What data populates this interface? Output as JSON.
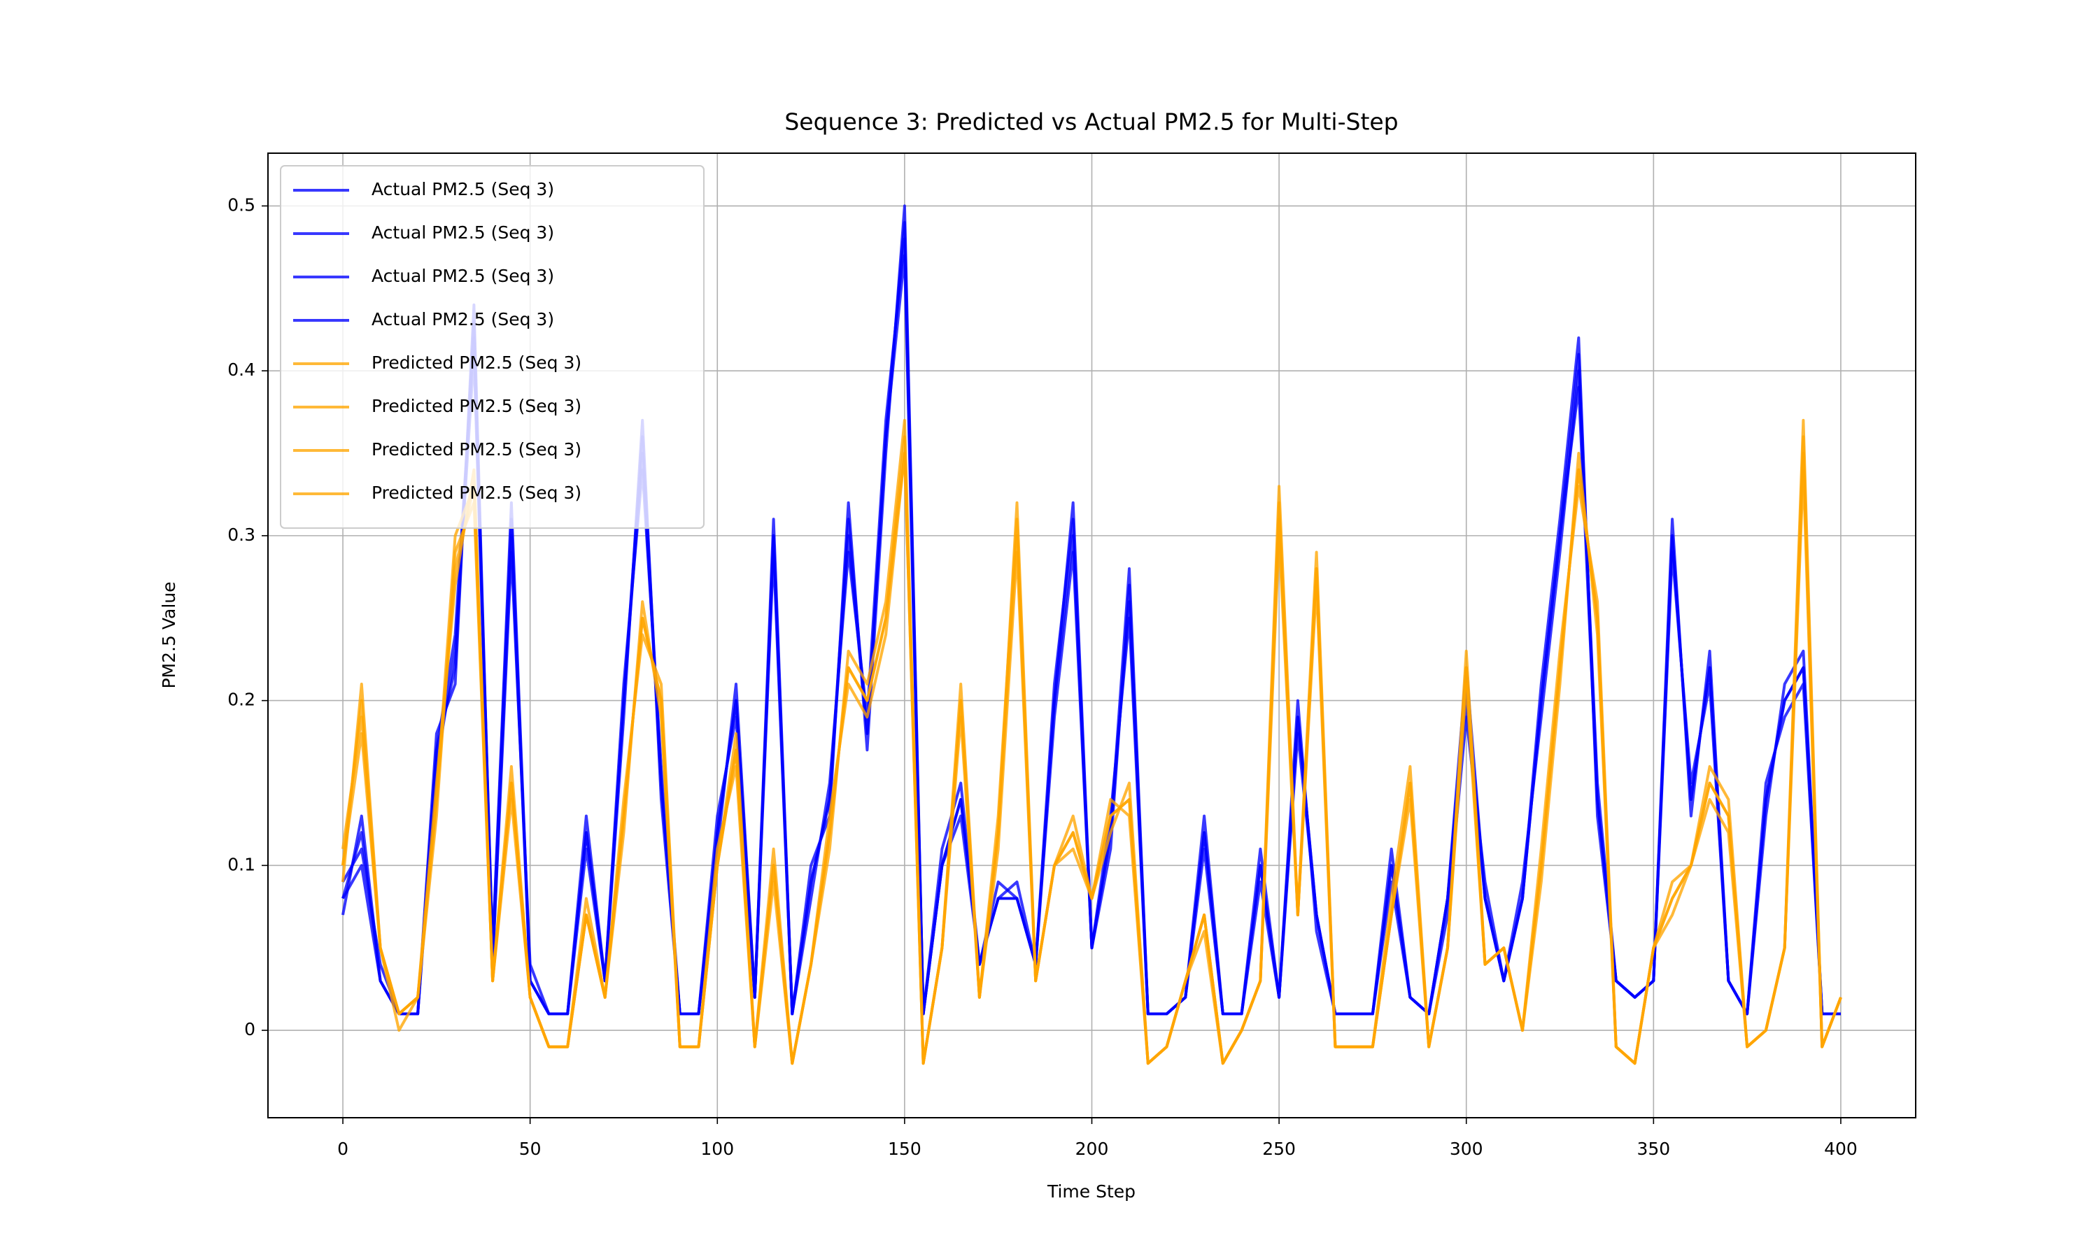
{
  "chart_data": {
    "type": "line",
    "title": "Sequence 3: Predicted vs Actual PM2.5 for Multi-Step",
    "x_label": "Time Step",
    "y_label": "PM2.5 Value",
    "x": [
      0,
      5,
      10,
      15,
      20,
      25,
      30,
      35,
      40,
      45,
      50,
      55,
      60,
      65,
      70,
      75,
      80,
      85,
      90,
      95,
      100,
      105,
      110,
      115,
      120,
      125,
      130,
      135,
      140,
      145,
      150,
      155,
      160,
      165,
      170,
      175,
      180,
      185,
      190,
      195,
      200,
      205,
      210,
      215,
      220,
      225,
      230,
      235,
      240,
      245,
      250,
      255,
      260,
      265,
      270,
      275,
      280,
      285,
      290,
      295,
      300,
      305,
      310,
      315,
      320,
      325,
      330,
      335,
      340,
      345,
      350,
      355,
      360,
      365,
      370,
      375,
      380,
      385,
      390,
      395,
      400
    ],
    "series": [
      {
        "name": "Actual PM2.5 (Seq 3)",
        "color": "#0000ff",
        "values": [
          0.08,
          0.12,
          0.03,
          0.01,
          0.01,
          0.17,
          0.22,
          0.43,
          0.04,
          0.3,
          0.03,
          0.01,
          0.01,
          0.12,
          0.03,
          0.2,
          0.35,
          0.15,
          0.01,
          0.01,
          0.12,
          0.2,
          0.02,
          0.3,
          0.01,
          0.09,
          0.14,
          0.3,
          0.18,
          0.36,
          0.49,
          0.01,
          0.1,
          0.14,
          0.04,
          0.08,
          0.08,
          0.04,
          0.2,
          0.3,
          0.05,
          0.12,
          0.26,
          0.01,
          0.01,
          0.02,
          0.12,
          0.01,
          0.01,
          0.1,
          0.02,
          0.19,
          0.07,
          0.01,
          0.01,
          0.01,
          0.1,
          0.02,
          0.01,
          0.08,
          0.2,
          0.08,
          0.03,
          0.08,
          0.2,
          0.3,
          0.41,
          0.14,
          0.03,
          0.02,
          0.03,
          0.3,
          0.14,
          0.22,
          0.03,
          0.01,
          0.14,
          0.2,
          0.22,
          0.01,
          0.01
        ]
      },
      {
        "name": "Actual PM2.5 (Seq 3)",
        "color": "#0000ff",
        "values": [
          0.09,
          0.11,
          0.04,
          0.01,
          0.01,
          0.16,
          0.23,
          0.41,
          0.05,
          0.32,
          0.03,
          0.01,
          0.01,
          0.11,
          0.03,
          0.19,
          0.37,
          0.14,
          0.01,
          0.01,
          0.11,
          0.21,
          0.02,
          0.29,
          0.01,
          0.1,
          0.13,
          0.32,
          0.17,
          0.35,
          0.5,
          0.01,
          0.1,
          0.13,
          0.04,
          0.09,
          0.08,
          0.04,
          0.21,
          0.31,
          0.05,
          0.11,
          0.27,
          0.01,
          0.01,
          0.02,
          0.11,
          0.01,
          0.01,
          0.11,
          0.02,
          0.18,
          0.07,
          0.01,
          0.01,
          0.01,
          0.09,
          0.02,
          0.01,
          0.08,
          0.21,
          0.08,
          0.03,
          0.08,
          0.21,
          0.31,
          0.42,
          0.13,
          0.03,
          0.02,
          0.03,
          0.31,
          0.13,
          0.23,
          0.03,
          0.01,
          0.13,
          0.21,
          0.23,
          0.01,
          0.01
        ]
      },
      {
        "name": "Actual PM2.5 (Seq 3)",
        "color": "#0000ff",
        "values": [
          0.07,
          0.13,
          0.03,
          0.01,
          0.01,
          0.18,
          0.21,
          0.44,
          0.04,
          0.29,
          0.04,
          0.01,
          0.01,
          0.13,
          0.03,
          0.21,
          0.34,
          0.16,
          0.01,
          0.01,
          0.13,
          0.19,
          0.02,
          0.31,
          0.01,
          0.08,
          0.15,
          0.29,
          0.19,
          0.37,
          0.48,
          0.01,
          0.11,
          0.15,
          0.04,
          0.08,
          0.09,
          0.04,
          0.19,
          0.29,
          0.05,
          0.13,
          0.25,
          0.01,
          0.01,
          0.02,
          0.13,
          0.01,
          0.01,
          0.1,
          0.02,
          0.2,
          0.06,
          0.01,
          0.01,
          0.01,
          0.11,
          0.02,
          0.01,
          0.07,
          0.19,
          0.09,
          0.03,
          0.09,
          0.19,
          0.29,
          0.4,
          0.15,
          0.03,
          0.02,
          0.03,
          0.29,
          0.15,
          0.21,
          0.03,
          0.01,
          0.15,
          0.19,
          0.21,
          0.01,
          0.01
        ]
      },
      {
        "name": "Actual PM2.5 (Seq 3)",
        "color": "#0000ff",
        "values": [
          0.08,
          0.1,
          0.03,
          0.01,
          0.01,
          0.17,
          0.24,
          0.42,
          0.05,
          0.31,
          0.03,
          0.01,
          0.01,
          0.12,
          0.03,
          0.2,
          0.36,
          0.15,
          0.01,
          0.01,
          0.12,
          0.2,
          0.02,
          0.3,
          0.01,
          0.09,
          0.14,
          0.31,
          0.18,
          0.36,
          0.47,
          0.01,
          0.1,
          0.14,
          0.04,
          0.08,
          0.08,
          0.04,
          0.2,
          0.32,
          0.05,
          0.12,
          0.28,
          0.01,
          0.01,
          0.02,
          0.12,
          0.01,
          0.01,
          0.09,
          0.02,
          0.19,
          0.07,
          0.01,
          0.01,
          0.01,
          0.1,
          0.02,
          0.01,
          0.08,
          0.22,
          0.08,
          0.03,
          0.08,
          0.2,
          0.3,
          0.39,
          0.14,
          0.03,
          0.02,
          0.03,
          0.3,
          0.14,
          0.22,
          0.03,
          0.01,
          0.14,
          0.2,
          0.22,
          0.01,
          0.01
        ]
      },
      {
        "name": "Predicted PM2.5 (Seq 3)",
        "color": "#ffa500",
        "values": [
          0.1,
          0.2,
          0.05,
          0.01,
          0.02,
          0.14,
          0.28,
          0.33,
          0.03,
          0.15,
          0.02,
          -0.01,
          -0.01,
          0.07,
          0.02,
          0.13,
          0.25,
          0.2,
          -0.01,
          -0.01,
          0.1,
          0.17,
          -0.01,
          0.1,
          -0.02,
          0.04,
          0.12,
          0.22,
          0.2,
          0.25,
          0.36,
          -0.02,
          0.05,
          0.2,
          0.02,
          0.12,
          0.3,
          0.03,
          0.1,
          0.12,
          0.08,
          0.13,
          0.14,
          -0.02,
          -0.01,
          0.03,
          0.07,
          -0.02,
          0.0,
          0.03,
          0.32,
          0.07,
          0.28,
          -0.01,
          -0.01,
          -0.01,
          0.07,
          0.15,
          -0.01,
          0.05,
          0.22,
          0.04,
          0.05,
          0.0,
          0.1,
          0.22,
          0.34,
          0.25,
          -0.01,
          -0.02,
          0.05,
          0.08,
          0.1,
          0.15,
          0.13,
          -0.01,
          0.0,
          0.05,
          0.35,
          -0.01,
          0.02
        ]
      },
      {
        "name": "Predicted PM2.5 (Seq 3)",
        "color": "#ffa500",
        "values": [
          0.11,
          0.19,
          0.05,
          0.01,
          0.02,
          0.15,
          0.27,
          0.34,
          0.03,
          0.16,
          0.02,
          -0.01,
          -0.01,
          0.08,
          0.02,
          0.12,
          0.26,
          0.19,
          -0.01,
          -0.01,
          0.11,
          0.16,
          -0.01,
          0.11,
          -0.02,
          0.04,
          0.11,
          0.23,
          0.21,
          0.26,
          0.37,
          -0.02,
          0.05,
          0.19,
          0.02,
          0.13,
          0.31,
          0.03,
          0.1,
          0.13,
          0.08,
          0.14,
          0.13,
          -0.02,
          -0.01,
          0.03,
          0.06,
          -0.02,
          0.0,
          0.03,
          0.33,
          0.07,
          0.27,
          -0.01,
          -0.01,
          -0.01,
          0.08,
          0.16,
          -0.01,
          0.05,
          0.21,
          0.04,
          0.05,
          0.0,
          0.11,
          0.23,
          0.33,
          0.26,
          -0.01,
          -0.02,
          0.05,
          0.09,
          0.1,
          0.14,
          0.12,
          -0.01,
          0.0,
          0.05,
          0.36,
          -0.01,
          0.02
        ]
      },
      {
        "name": "Predicted PM2.5 (Seq 3)",
        "color": "#ffa500",
        "values": [
          0.09,
          0.21,
          0.05,
          0.0,
          0.02,
          0.13,
          0.29,
          0.32,
          0.03,
          0.14,
          0.02,
          -0.01,
          -0.01,
          0.07,
          0.02,
          0.14,
          0.24,
          0.21,
          -0.01,
          -0.01,
          0.1,
          0.18,
          -0.01,
          0.09,
          -0.02,
          0.04,
          0.13,
          0.21,
          0.19,
          0.24,
          0.35,
          -0.02,
          0.05,
          0.21,
          0.02,
          0.11,
          0.29,
          0.03,
          0.1,
          0.11,
          0.08,
          0.12,
          0.15,
          -0.02,
          -0.01,
          0.03,
          0.07,
          -0.02,
          0.0,
          0.03,
          0.31,
          0.07,
          0.29,
          -0.01,
          -0.01,
          -0.01,
          0.07,
          0.14,
          -0.01,
          0.05,
          0.23,
          0.04,
          0.05,
          0.0,
          0.09,
          0.21,
          0.35,
          0.24,
          -0.01,
          -0.02,
          0.05,
          0.07,
          0.1,
          0.16,
          0.14,
          -0.01,
          0.0,
          0.05,
          0.34,
          -0.01,
          0.02
        ]
      },
      {
        "name": "Predicted PM2.5 (Seq 3)",
        "color": "#ffa500",
        "values": [
          0.1,
          0.18,
          0.05,
          0.01,
          0.02,
          0.14,
          0.3,
          0.33,
          0.03,
          0.15,
          0.02,
          -0.01,
          -0.01,
          0.07,
          0.02,
          0.13,
          0.25,
          0.2,
          -0.01,
          -0.01,
          0.1,
          0.17,
          -0.01,
          0.1,
          -0.02,
          0.04,
          0.12,
          0.22,
          0.2,
          0.25,
          0.35,
          -0.02,
          0.05,
          0.2,
          0.02,
          0.12,
          0.32,
          0.03,
          0.1,
          0.12,
          0.08,
          0.13,
          0.14,
          -0.02,
          -0.01,
          0.03,
          0.07,
          -0.02,
          0.0,
          0.03,
          0.3,
          0.07,
          0.28,
          -0.01,
          -0.01,
          -0.01,
          0.07,
          0.15,
          -0.01,
          0.05,
          0.22,
          0.04,
          0.05,
          0.0,
          0.1,
          0.22,
          0.34,
          0.25,
          -0.01,
          -0.02,
          0.05,
          0.08,
          0.1,
          0.15,
          0.13,
          -0.01,
          0.0,
          0.05,
          0.37,
          -0.01,
          0.02
        ]
      }
    ],
    "xlim": [
      -20,
      420
    ],
    "ylim": [
      -0.053,
      0.532
    ],
    "xticks": [
      0,
      50,
      100,
      150,
      200,
      250,
      300,
      350,
      400
    ],
    "yticks": [
      0.0,
      0.1,
      0.2,
      0.3,
      0.4,
      0.5
    ],
    "grid": true,
    "legend": "upper left"
  }
}
